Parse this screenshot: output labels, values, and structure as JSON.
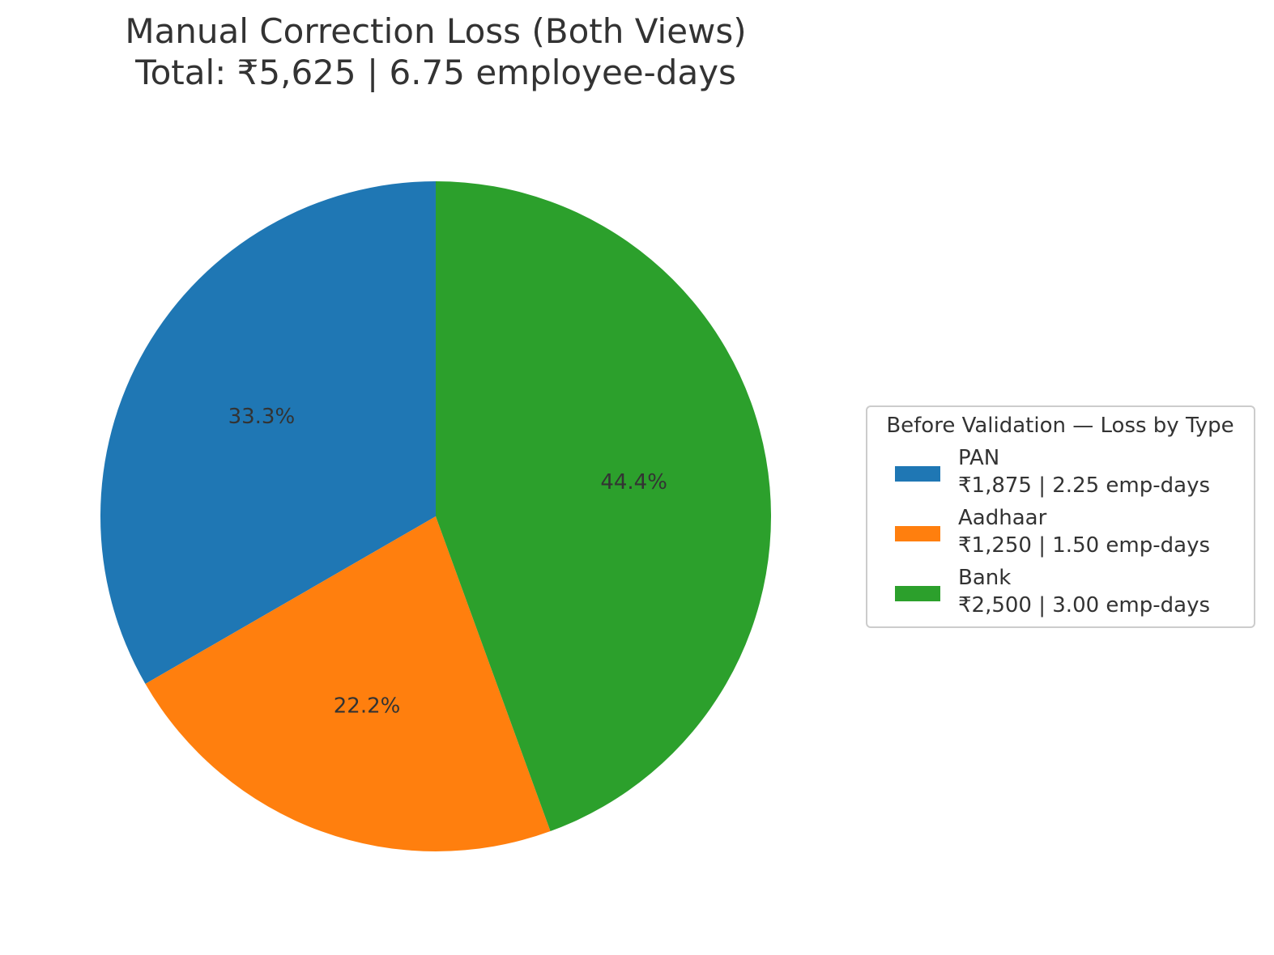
{
  "chart_data": {
    "type": "pie",
    "title_lines": [
      "Manual Correction Loss (Both Views)",
      "Total: ₹5,625 | 6.75 employee-days"
    ],
    "categories": [
      "PAN",
      "Aadhaar",
      "Bank"
    ],
    "values": [
      1875,
      1250,
      2500
    ],
    "emp_days": [
      2.25,
      1.5,
      3.0
    ],
    "pct_labels": [
      "33.3%",
      "22.2%",
      "44.4%"
    ],
    "legend_title": "Before Validation — Loss by Type",
    "legend_entries": [
      {
        "name": "PAN",
        "detail": "₹1,875 | 2.25 emp-days"
      },
      {
        "name": "Aadhaar",
        "detail": "₹1,250 | 1.50 emp-days"
      },
      {
        "name": "Bank",
        "detail": "₹2,500 | 3.00 emp-days"
      }
    ],
    "colors": [
      "#1f77b4",
      "#ff7f0e",
      "#2ca02c"
    ],
    "start_angle_deg": 90,
    "direction": "counterclockwise",
    "legend_placement": "center-right"
  }
}
